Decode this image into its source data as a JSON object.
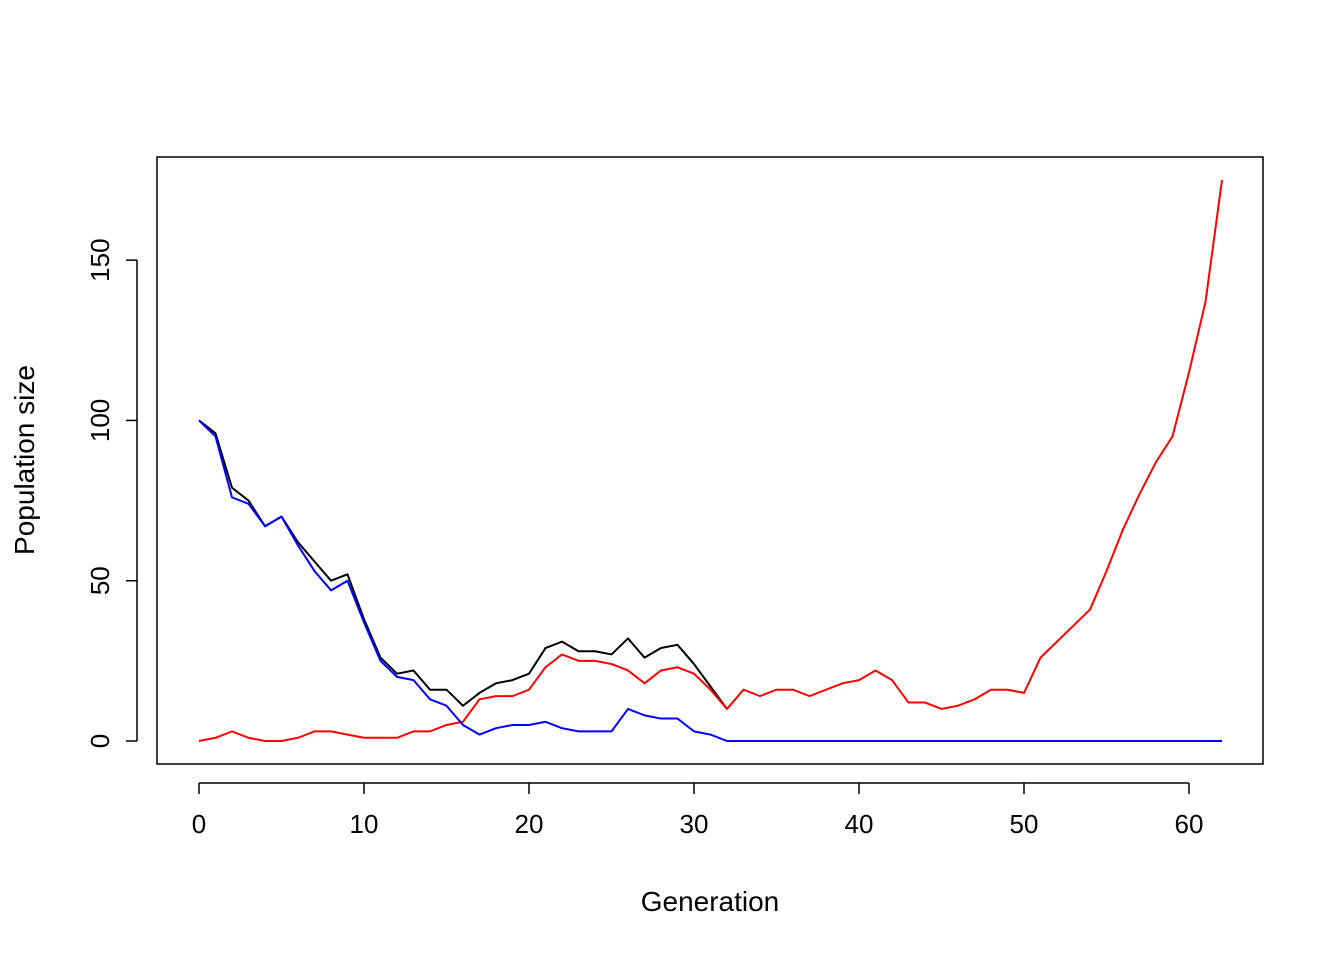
{
  "chart_data": {
    "type": "line",
    "title": "",
    "xlabel": "Generation",
    "ylabel": "Population size",
    "xlim": [
      0,
      62
    ],
    "ylim": [
      0,
      175
    ],
    "xticks": [
      0,
      10,
      20,
      30,
      40,
      50,
      60
    ],
    "yticks": [
      0,
      50,
      100,
      150
    ],
    "grid": false,
    "legend": "none",
    "series": [
      {
        "color": "#000000",
        "x": [
          0,
          1,
          2,
          3,
          4,
          5,
          6,
          7,
          8,
          9,
          10,
          11,
          12,
          13,
          14,
          15,
          16,
          17,
          18,
          19,
          20,
          21,
          22,
          23,
          24,
          25,
          26,
          27,
          28,
          29,
          30,
          31,
          32
        ],
        "values": [
          100,
          96,
          79,
          75,
          67,
          70,
          62,
          56,
          50,
          52,
          38,
          26,
          21,
          22,
          16,
          16,
          11,
          15,
          18,
          19,
          21,
          29,
          31,
          28,
          28,
          27,
          32,
          26,
          29,
          30,
          24,
          17,
          10
        ]
      },
      {
        "color": "#ff0000",
        "x": [
          0,
          1,
          2,
          3,
          4,
          5,
          6,
          7,
          8,
          9,
          10,
          11,
          12,
          13,
          14,
          15,
          16,
          17,
          18,
          19,
          20,
          21,
          22,
          23,
          24,
          25,
          26,
          27,
          28,
          29,
          30,
          31,
          32,
          33,
          34,
          35,
          36,
          37,
          38,
          39,
          40,
          41,
          42,
          43,
          44,
          45,
          46,
          47,
          48,
          49,
          50,
          51,
          52,
          53,
          54,
          55,
          56,
          57,
          58,
          59,
          60,
          61,
          62
        ],
        "values": [
          0,
          1,
          3,
          1,
          0,
          0,
          1,
          3,
          3,
          2,
          1,
          1,
          1,
          3,
          3,
          5,
          6,
          13,
          14,
          14,
          16,
          23,
          27,
          25,
          25,
          24,
          22,
          18,
          22,
          23,
          21,
          16,
          10,
          16,
          14,
          16,
          16,
          14,
          16,
          18,
          19,
          22,
          19,
          12,
          12,
          10,
          11,
          13,
          16,
          16,
          15,
          26,
          31,
          36,
          41,
          53,
          66,
          77,
          87,
          95,
          115,
          137,
          175
        ]
      },
      {
        "color": "#0000ff",
        "x": [
          0,
          1,
          2,
          3,
          4,
          5,
          6,
          7,
          8,
          9,
          10,
          11,
          12,
          13,
          14,
          15,
          16,
          17,
          18,
          19,
          20,
          21,
          22,
          23,
          24,
          25,
          26,
          27,
          28,
          29,
          30,
          31,
          32,
          33,
          34,
          35,
          36,
          37,
          38,
          39,
          40,
          41,
          42,
          43,
          44,
          45,
          46,
          47,
          48,
          49,
          50,
          51,
          52,
          53,
          54,
          55,
          56,
          57,
          58,
          59,
          60,
          61,
          62
        ],
        "values": [
          100,
          95,
          76,
          74,
          67,
          70,
          61,
          53,
          47,
          50,
          37,
          25,
          20,
          19,
          13,
          11,
          5,
          2,
          4,
          5,
          5,
          6,
          4,
          3,
          3,
          3,
          10,
          8,
          7,
          7,
          3,
          2,
          0,
          0,
          0,
          0,
          0,
          0,
          0,
          0,
          0,
          0,
          0,
          0,
          0,
          0,
          0,
          0,
          0,
          0,
          0,
          0,
          0,
          0,
          0,
          0,
          0,
          0,
          0,
          0,
          0,
          0,
          0
        ]
      }
    ]
  }
}
